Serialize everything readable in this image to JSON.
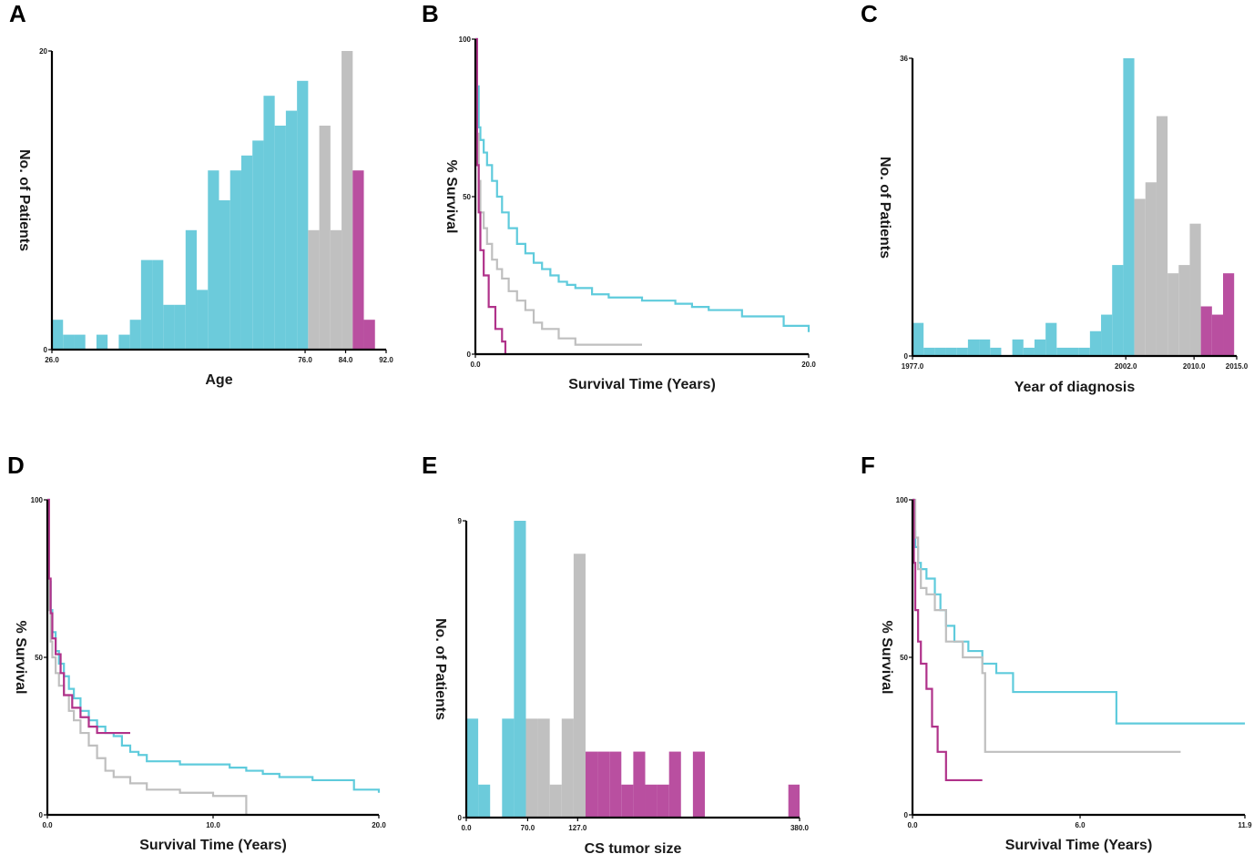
{
  "chart_data": [
    {
      "panel": "A",
      "type": "histogram",
      "xlabel": "Age",
      "ylabel": "No. of Patients",
      "xlim": [
        26.0,
        92.0
      ],
      "ylim": [
        0,
        20
      ],
      "x_ticks": [
        "26.0",
        "76.0",
        "84.0",
        "92.0"
      ],
      "y_ticks": [
        "0",
        "20"
      ],
      "bin_start": 26.0,
      "bin_width": 2.2,
      "values": [
        2,
        1,
        1,
        0,
        1,
        0,
        1,
        2,
        6,
        6,
        3,
        3,
        8,
        4,
        12,
        10,
        12,
        13,
        14,
        17,
        15,
        16,
        18,
        8,
        15,
        8,
        20,
        12,
        2
      ],
      "colors": [
        "#6ccbdb",
        "#6ccbdb",
        "#6ccbdb",
        "#6ccbdb",
        "#6ccbdb",
        "#6ccbdb",
        "#6ccbdb",
        "#6ccbdb",
        "#6ccbdb",
        "#6ccbdb",
        "#6ccbdb",
        "#6ccbdb",
        "#6ccbdb",
        "#6ccbdb",
        "#6ccbdb",
        "#6ccbdb",
        "#6ccbdb",
        "#6ccbdb",
        "#6ccbdb",
        "#6ccbdb",
        "#6ccbdb",
        "#6ccbdb",
        "#6ccbdb",
        "#c0c0c0",
        "#c0c0c0",
        "#c0c0c0",
        "#c0c0c0",
        "#b94fa0",
        "#b94fa0"
      ]
    },
    {
      "panel": "B",
      "type": "line",
      "xlabel": "Survival Time (Years)",
      "ylabel": "% Survival",
      "xlim": [
        0,
        20
      ],
      "ylim": [
        0,
        100
      ],
      "x_ticks": [
        "0.0",
        "20.0"
      ],
      "y_ticks": [
        "0",
        "50",
        "100"
      ],
      "series": [
        {
          "name": "cyan",
          "color": "#5fcbdc",
          "x": [
            0,
            0.1,
            0.2,
            0.3,
            0.5,
            0.7,
            1.0,
            1.3,
            1.6,
            2.0,
            2.5,
            3.0,
            3.5,
            4.0,
            4.5,
            5.0,
            5.5,
            6.0,
            7.0,
            8.0,
            9.0,
            10.0,
            11.0,
            12.0,
            13.0,
            14.0,
            16.0,
            18.0,
            18.5,
            20.0
          ],
          "y": [
            100,
            85,
            72,
            68,
            64,
            60,
            55,
            50,
            45,
            40,
            35,
            32,
            29,
            27,
            25,
            23,
            22,
            21,
            19,
            18,
            18,
            17,
            17,
            16,
            15,
            14,
            12,
            12,
            9,
            7
          ]
        },
        {
          "name": "gray",
          "color": "#bfbfbf",
          "x": [
            0,
            0.1,
            0.2,
            0.3,
            0.5,
            0.7,
            1.0,
            1.3,
            1.6,
            2.0,
            2.5,
            3.0,
            3.5,
            4.0,
            5.0,
            6.0,
            10.0
          ],
          "y": [
            100,
            70,
            55,
            45,
            40,
            35,
            30,
            27,
            24,
            20,
            17,
            14,
            10,
            8,
            5,
            3,
            3
          ]
        },
        {
          "name": "magenta",
          "color": "#b0328a",
          "x": [
            0,
            0.1,
            0.2,
            0.3,
            0.5,
            0.8,
            1.2,
            1.6,
            1.8,
            1.8
          ],
          "y": [
            100,
            60,
            45,
            33,
            25,
            15,
            8,
            4,
            2,
            0
          ]
        }
      ]
    },
    {
      "panel": "C",
      "type": "histogram",
      "xlabel": "Year of diagnosis",
      "ylabel": "No. of Patients",
      "xlim": [
        1977.0,
        2015.0
      ],
      "ylim": [
        0,
        36
      ],
      "x_ticks": [
        "1977.0",
        "2002.0",
        "2010.0",
        "2015.0"
      ],
      "y_ticks": [
        "0",
        "36"
      ],
      "bin_start": 1977.0,
      "bin_width": 1.3,
      "values": [
        4,
        1,
        1,
        1,
        1,
        2,
        2,
        1,
        0,
        2,
        1,
        2,
        4,
        1,
        1,
        1,
        3,
        5,
        11,
        36,
        19,
        21,
        29,
        10,
        11,
        16,
        6,
        5,
        10
      ],
      "colors": [
        "#6ccbdb",
        "#6ccbdb",
        "#6ccbdb",
        "#6ccbdb",
        "#6ccbdb",
        "#6ccbdb",
        "#6ccbdb",
        "#6ccbdb",
        "#6ccbdb",
        "#6ccbdb",
        "#6ccbdb",
        "#6ccbdb",
        "#6ccbdb",
        "#6ccbdb",
        "#6ccbdb",
        "#6ccbdb",
        "#6ccbdb",
        "#6ccbdb",
        "#6ccbdb",
        "#6ccbdb",
        "#c0c0c0",
        "#c0c0c0",
        "#c0c0c0",
        "#c0c0c0",
        "#c0c0c0",
        "#c0c0c0",
        "#b94fa0",
        "#b94fa0",
        "#b94fa0"
      ]
    },
    {
      "panel": "D",
      "type": "line",
      "xlabel": "Survival Time (Years)",
      "ylabel": "% Survival",
      "xlim": [
        0,
        20
      ],
      "ylim": [
        0,
        100
      ],
      "x_ticks": [
        "0.0",
        "10.0",
        "20.0"
      ],
      "y_ticks": [
        "0",
        "50",
        "100"
      ],
      "series": [
        {
          "name": "cyan",
          "color": "#5fcbdc",
          "x": [
            0,
            0.1,
            0.2,
            0.3,
            0.5,
            0.7,
            1.0,
            1.3,
            1.6,
            2.0,
            2.5,
            3.0,
            3.5,
            4.0,
            4.5,
            5.0,
            5.5,
            6.0,
            7.0,
            8.0,
            9.0,
            10.0,
            11.0,
            12.0,
            13.0,
            14.0,
            16.0,
            18.0,
            18.5,
            20.0
          ],
          "y": [
            100,
            74,
            65,
            58,
            52,
            48,
            44,
            40,
            37,
            33,
            30,
            28,
            26,
            25,
            22,
            20,
            19,
            17,
            17,
            16,
            16,
            16,
            15,
            14,
            13,
            12,
            11,
            11,
            8,
            7
          ]
        },
        {
          "name": "gray",
          "color": "#bfbfbf",
          "x": [
            0,
            0.1,
            0.2,
            0.3,
            0.5,
            0.7,
            1.0,
            1.3,
            1.6,
            2.0,
            2.5,
            3.0,
            3.5,
            4.0,
            5.0,
            6.0,
            8.0,
            10.0,
            12.0,
            12.0
          ],
          "y": [
            100,
            65,
            55,
            50,
            45,
            41,
            38,
            33,
            30,
            26,
            22,
            18,
            14,
            12,
            10,
            8,
            7,
            6,
            6,
            0
          ]
        },
        {
          "name": "magenta",
          "color": "#b0328a",
          "x": [
            0,
            0.1,
            0.2,
            0.3,
            0.5,
            0.8,
            1.0,
            1.5,
            2.0,
            2.5,
            3.0,
            4.0,
            5.0
          ],
          "y": [
            100,
            75,
            64,
            56,
            51,
            45,
            38,
            34,
            31,
            28,
            26,
            26,
            26
          ]
        }
      ]
    },
    {
      "panel": "E",
      "type": "histogram",
      "xlabel": "CS tumor size",
      "ylabel": "No. of Patients",
      "xlim": [
        0.0,
        380.0
      ],
      "ylim": [
        0,
        9
      ],
      "x_ticks": [
        "0.0",
        "70.0",
        "127.0",
        "380.0"
      ],
      "y_ticks": [
        "0",
        "9"
      ],
      "bin_start": 0.0,
      "bin_width": 13.6,
      "values": [
        3,
        1,
        0,
        3,
        9,
        3,
        3,
        1,
        3,
        8,
        2,
        2,
        2,
        1,
        2,
        1,
        1,
        2,
        0,
        2,
        0,
        0,
        0,
        0,
        0,
        0,
        0,
        1
      ],
      "colors": [
        "#6ccbdb",
        "#6ccbdb",
        "#6ccbdb",
        "#6ccbdb",
        "#6ccbdb",
        "#c0c0c0",
        "#c0c0c0",
        "#c0c0c0",
        "#c0c0c0",
        "#c0c0c0",
        "#b94fa0",
        "#b94fa0",
        "#b94fa0",
        "#b94fa0",
        "#b94fa0",
        "#b94fa0",
        "#b94fa0",
        "#b94fa0",
        "#b94fa0",
        "#b94fa0",
        "#b94fa0",
        "#b94fa0",
        "#b94fa0",
        "#b94fa0",
        "#b94fa0",
        "#b94fa0",
        "#b94fa0",
        "#b94fa0"
      ]
    },
    {
      "panel": "F",
      "type": "line",
      "xlabel": "Survival Time (Years)",
      "ylabel": "% Survival",
      "xlim": [
        0,
        11.9
      ],
      "ylim": [
        0,
        100
      ],
      "x_ticks": [
        "0.0",
        "6.0",
        "11.9"
      ],
      "y_ticks": [
        "0",
        "50",
        "100"
      ],
      "series": [
        {
          "name": "cyan",
          "color": "#5fcbdc",
          "x": [
            0,
            0.05,
            0.1,
            0.2,
            0.3,
            0.5,
            0.8,
            1.0,
            1.2,
            1.5,
            2.0,
            2.5,
            3.0,
            3.6,
            5.0,
            7.3,
            9.0,
            11.9
          ],
          "y": [
            100,
            90,
            85,
            80,
            78,
            75,
            70,
            65,
            60,
            55,
            52,
            48,
            45,
            39,
            39,
            29,
            29,
            29
          ]
        },
        {
          "name": "gray",
          "color": "#bfbfbf",
          "x": [
            0,
            0.1,
            0.2,
            0.3,
            0.5,
            0.8,
            1.2,
            1.8,
            2.5,
            2.6,
            5.0,
            9.6
          ],
          "y": [
            100,
            88,
            78,
            72,
            70,
            65,
            55,
            50,
            45,
            20,
            20,
            20
          ]
        },
        {
          "name": "magenta",
          "color": "#b0328a",
          "x": [
            0,
            0.05,
            0.1,
            0.2,
            0.3,
            0.5,
            0.7,
            0.9,
            1.2,
            2.5
          ],
          "y": [
            100,
            80,
            65,
            55,
            48,
            40,
            28,
            20,
            11,
            11
          ]
        }
      ]
    }
  ]
}
